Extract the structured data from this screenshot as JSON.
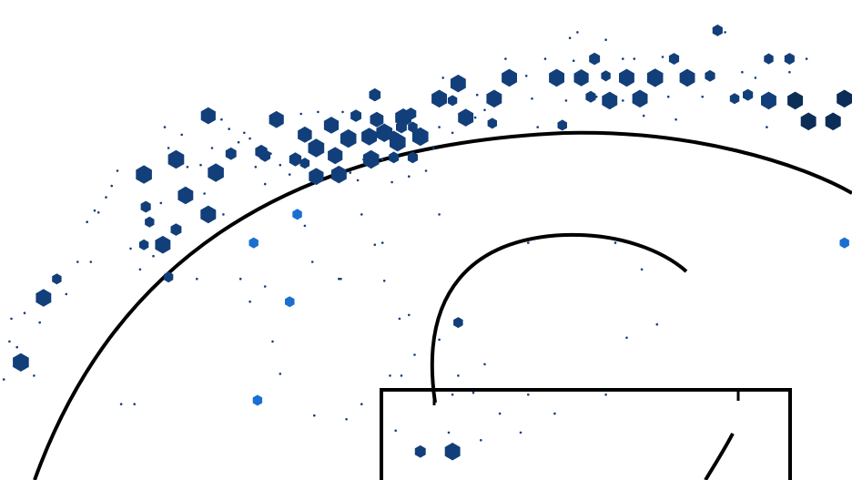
{
  "chart_data": {
    "type": "hexbin",
    "x_range_ft": [
      -22.5,
      22.5
    ],
    "y_range_ft": [
      -1.2,
      24.1
    ],
    "colors": {
      "high": "#0b2d57",
      "mid": "#123f7a",
      "low": "#1a6fd0",
      "lines": "#000000",
      "background": "#ffffff"
    },
    "bins": [
      {
        "x": -11.5,
        "y": 18.0,
        "r": 0.45,
        "c": "mid"
      },
      {
        "x": -8.7,
        "y": 16.1,
        "r": 0.37,
        "c": "mid"
      },
      {
        "x": -7.9,
        "y": 17.8,
        "r": 0.45,
        "c": "mid"
      },
      {
        "x": -6.9,
        "y": 15.7,
        "r": 0.37,
        "c": "mid"
      },
      {
        "x": -6.4,
        "y": 17.0,
        "r": 0.43,
        "c": "mid"
      },
      {
        "x": -5.8,
        "y": 16.3,
        "r": 0.49,
        "c": "mid"
      },
      {
        "x": -6.4,
        "y": 15.5,
        "r": 0.29,
        "c": "mid"
      },
      {
        "x": -5.0,
        "y": 17.5,
        "r": 0.45,
        "c": "mid"
      },
      {
        "x": -5.8,
        "y": 14.8,
        "r": 0.45,
        "c": "mid"
      },
      {
        "x": -4.8,
        "y": 15.9,
        "r": 0.45,
        "c": "mid"
      },
      {
        "x": -4.1,
        "y": 16.8,
        "r": 0.49,
        "c": "mid"
      },
      {
        "x": -4.6,
        "y": 14.9,
        "r": 0.47,
        "c": "mid"
      },
      {
        "x": -2.7,
        "y": 19.1,
        "r": 0.35,
        "c": "mid"
      },
      {
        "x": -2.6,
        "y": 17.8,
        "r": 0.41,
        "c": "mid"
      },
      {
        "x": -2.2,
        "y": 17.1,
        "r": 0.49,
        "c": "mid"
      },
      {
        "x": -3.7,
        "y": 18.0,
        "r": 0.33,
        "c": "mid"
      },
      {
        "x": -1.2,
        "y": 17.9,
        "r": 0.49,
        "c": "mid"
      },
      {
        "x": -3.0,
        "y": 16.9,
        "r": 0.47,
        "c": "mid"
      },
      {
        "x": -1.5,
        "y": 16.6,
        "r": 0.49,
        "c": "mid"
      },
      {
        "x": -0.7,
        "y": 17.4,
        "r": 0.29,
        "c": "mid"
      },
      {
        "x": -2.9,
        "y": 15.7,
        "r": 0.49,
        "c": "mid"
      },
      {
        "x": -1.7,
        "y": 15.8,
        "r": 0.31,
        "c": "mid"
      },
      {
        "x": -1.7,
        "y": 16.9,
        "r": 0.31,
        "c": "mid"
      },
      {
        "x": -1.3,
        "y": 17.4,
        "r": 0.33,
        "c": "mid"
      },
      {
        "x": -0.8,
        "y": 18.1,
        "r": 0.33,
        "c": "mid"
      },
      {
        "x": -0.3,
        "y": 16.9,
        "r": 0.49,
        "c": "mid"
      },
      {
        "x": -0.7,
        "y": 15.8,
        "r": 0.31,
        "c": "mid"
      },
      {
        "x": 1.7,
        "y": 19.7,
        "r": 0.47,
        "c": "mid"
      },
      {
        "x": 0.7,
        "y": 18.9,
        "r": 0.47,
        "c": "mid"
      },
      {
        "x": 1.4,
        "y": 18.8,
        "r": 0.29,
        "c": "mid"
      },
      {
        "x": 2.1,
        "y": 17.9,
        "r": 0.47,
        "c": "mid"
      },
      {
        "x": 3.6,
        "y": 18.9,
        "r": 0.47,
        "c": "mid"
      },
      {
        "x": 4.4,
        "y": 20.0,
        "r": 0.47,
        "c": "mid"
      },
      {
        "x": 3.5,
        "y": 17.6,
        "r": 0.29,
        "c": "mid"
      },
      {
        "x": 6.9,
        "y": 20.0,
        "r": 0.47,
        "c": "mid"
      },
      {
        "x": 8.2,
        "y": 20.0,
        "r": 0.45,
        "c": "mid"
      },
      {
        "x": 8.9,
        "y": 21.0,
        "r": 0.33,
        "c": "mid"
      },
      {
        "x": 8.7,
        "y": 19.0,
        "r": 0.31,
        "c": "mid"
      },
      {
        "x": 9.5,
        "y": 20.1,
        "r": 0.29,
        "c": "mid"
      },
      {
        "x": 9.7,
        "y": 18.8,
        "r": 0.47,
        "c": "mid"
      },
      {
        "x": 10.6,
        "y": 20.0,
        "r": 0.47,
        "c": "mid"
      },
      {
        "x": 11.3,
        "y": 18.9,
        "r": 0.47,
        "c": "mid"
      },
      {
        "x": 12.1,
        "y": 20.0,
        "r": 0.49,
        "c": "mid"
      },
      {
        "x": 13.1,
        "y": 21.0,
        "r": 0.31,
        "c": "mid"
      },
      {
        "x": 13.8,
        "y": 20.0,
        "r": 0.47,
        "c": "mid"
      },
      {
        "x": 15.0,
        "y": 20.1,
        "r": 0.31,
        "c": "mid"
      },
      {
        "x": 16.3,
        "y": 18.9,
        "r": 0.29,
        "c": "mid"
      },
      {
        "x": 18.1,
        "y": 21.0,
        "r": 0.29,
        "c": "mid"
      },
      {
        "x": 19.2,
        "y": 21.0,
        "r": 0.31,
        "c": "mid"
      },
      {
        "x": 18.1,
        "y": 18.8,
        "r": 0.47,
        "c": "mid"
      },
      {
        "x": 19.5,
        "y": 18.8,
        "r": 0.47,
        "c": "high"
      },
      {
        "x": 20.2,
        "y": 17.7,
        "r": 0.47,
        "c": "high"
      },
      {
        "x": 21.5,
        "y": 17.7,
        "r": 0.47,
        "c": "high"
      },
      {
        "x": 22.1,
        "y": 18.9,
        "r": 0.47,
        "c": "high"
      },
      {
        "x": 7.2,
        "y": 17.5,
        "r": 0.29,
        "c": "mid"
      },
      {
        "x": -14.9,
        "y": 14.9,
        "r": 0.49,
        "c": "mid"
      },
      {
        "x": -13.2,
        "y": 15.7,
        "r": 0.49,
        "c": "mid"
      },
      {
        "x": -11.1,
        "y": 15.0,
        "r": 0.49,
        "c": "mid"
      },
      {
        "x": -10.3,
        "y": 16.0,
        "r": 0.33,
        "c": "mid"
      },
      {
        "x": -12.7,
        "y": 13.8,
        "r": 0.47,
        "c": "mid"
      },
      {
        "x": -11.5,
        "y": 12.8,
        "r": 0.47,
        "c": "mid"
      },
      {
        "x": -13.2,
        "y": 12.0,
        "r": 0.33,
        "c": "mid"
      },
      {
        "x": -14.6,
        "y": 12.4,
        "r": 0.29,
        "c": "mid"
      },
      {
        "x": -13.9,
        "y": 11.2,
        "r": 0.47,
        "c": "mid"
      },
      {
        "x": -14.9,
        "y": 11.2,
        "r": 0.29,
        "c": "mid"
      },
      {
        "x": -13.6,
        "y": 9.5,
        "r": 0.29,
        "c": "mid"
      },
      {
        "x": -19.5,
        "y": 9.4,
        "r": 0.29,
        "c": "mid"
      },
      {
        "x": -20.2,
        "y": 8.4,
        "r": 0.47,
        "c": "mid"
      },
      {
        "x": -21.4,
        "y": 5.0,
        "r": 0.49,
        "c": "mid"
      },
      {
        "x": -9.1,
        "y": 11.3,
        "r": 0.29,
        "c": "low"
      },
      {
        "x": -6.8,
        "y": 12.8,
        "r": 0.29,
        "c": "low"
      },
      {
        "x": -7.2,
        "y": 8.2,
        "r": 0.29,
        "c": "low"
      },
      {
        "x": -8.9,
        "y": 3.0,
        "r": 0.29,
        "c": "low"
      },
      {
        "x": 22.1,
        "y": 11.3,
        "r": 0.29,
        "c": "low"
      },
      {
        "x": 1.7,
        "y": 7.1,
        "r": 0.29,
        "c": "mid"
      },
      {
        "x": -0.3,
        "y": 0.3,
        "r": 0.33,
        "c": "mid"
      },
      {
        "x": 1.4,
        "y": 0.3,
        "r": 0.47,
        "c": "mid"
      },
      {
        "x": 15.4,
        "y": 22.5,
        "r": 0.31,
        "c": "mid"
      },
      {
        "x": 17.0,
        "y": 19.1,
        "r": 0.31,
        "c": "mid"
      },
      {
        "x": -14.8,
        "y": 13.2,
        "r": 0.31,
        "c": "mid"
      },
      {
        "x": -8.5,
        "y": 15.9,
        "r": 0.33,
        "c": "mid"
      }
    ],
    "sparse_points": [
      [
        -22.3,
        4.1
      ],
      [
        -22.0,
        6.1
      ],
      [
        -21.6,
        5.8
      ],
      [
        -21.9,
        7.3
      ],
      [
        -21.2,
        7.6
      ],
      [
        -20.4,
        7.1
      ],
      [
        -19.0,
        8.6
      ],
      [
        -18.4,
        10.3
      ],
      [
        -17.7,
        10.3
      ],
      [
        -17.9,
        12.4
      ],
      [
        -17.3,
        12.9
      ],
      [
        -16.9,
        13.7
      ],
      [
        -16.6,
        14.3
      ],
      [
        -16.3,
        15.1
      ],
      [
        -15.6,
        11.0
      ],
      [
        -15.1,
        9.9
      ],
      [
        -14.4,
        10.6
      ],
      [
        -14.0,
        13.4
      ],
      [
        -13.6,
        16.3
      ],
      [
        -13.8,
        17.4
      ],
      [
        -12.9,
        17.0
      ],
      [
        -12.6,
        15.3
      ],
      [
        -11.9,
        15.4
      ],
      [
        -11.3,
        16.3
      ],
      [
        -10.8,
        17.8
      ],
      [
        -10.4,
        17.3
      ],
      [
        -9.9,
        16.6
      ],
      [
        -9.6,
        17.1
      ],
      [
        -9.3,
        16.8
      ],
      [
        -9.0,
        15.3
      ],
      [
        -8.5,
        14.4
      ],
      [
        -8.2,
        16.0
      ],
      [
        -7.7,
        15.4
      ],
      [
        -7.2,
        14.9
      ],
      [
        -6.6,
        18.1
      ],
      [
        -5.7,
        18.2
      ],
      [
        -4.4,
        18.2
      ],
      [
        -4.0,
        15.0
      ],
      [
        -3.6,
        14.6
      ],
      [
        -3.3,
        15.7
      ],
      [
        -2.3,
        15.7
      ],
      [
        -1.8,
        14.5
      ],
      [
        -0.9,
        14.8
      ],
      [
        0.0,
        15.1
      ],
      [
        0.4,
        16.3
      ],
      [
        0.7,
        17.4
      ],
      [
        0.9,
        20.0
      ],
      [
        1.4,
        17.1
      ],
      [
        2.7,
        19.1
      ],
      [
        3.1,
        18.3
      ],
      [
        2.6,
        17.9
      ],
      [
        4.2,
        21.0
      ],
      [
        5.3,
        20.1
      ],
      [
        5.6,
        18.9
      ],
      [
        5.9,
        17.4
      ],
      [
        6.3,
        21.0
      ],
      [
        7.4,
        18.8
      ],
      [
        7.6,
        22.1
      ],
      [
        7.8,
        20.9
      ],
      [
        8.0,
        22.4
      ],
      [
        9.0,
        19.0
      ],
      [
        9.5,
        22.0
      ],
      [
        10.4,
        21.0
      ],
      [
        10.4,
        18.8
      ],
      [
        11.0,
        21.0
      ],
      [
        11.5,
        18.0
      ],
      [
        12.5,
        21.1
      ],
      [
        12.8,
        19.0
      ],
      [
        13.2,
        17.8
      ],
      [
        14.6,
        19.0
      ],
      [
        15.8,
        22.4
      ],
      [
        16.7,
        20.3
      ],
      [
        17.4,
        20.0
      ],
      [
        18.0,
        17.4
      ],
      [
        19.2,
        20.3
      ],
      [
        20.1,
        21.0
      ],
      [
        -20.7,
        4.3
      ],
      [
        -17.5,
        13.0
      ],
      [
        -11.7,
        13.9
      ],
      [
        -10.7,
        12.8
      ],
      [
        -9.8,
        9.4
      ],
      [
        -9.3,
        8.2
      ],
      [
        -8.5,
        9.0
      ],
      [
        -8.1,
        6.1
      ],
      [
        -7.7,
        4.4
      ],
      [
        -6.4,
        12.2
      ],
      [
        -6.0,
        10.3
      ],
      [
        -4.8,
        16.1
      ],
      [
        -2.3,
        11.3
      ],
      [
        -2.2,
        9.3
      ],
      [
        -1.4,
        7.3
      ],
      [
        -1.9,
        4.3
      ],
      [
        -0.9,
        7.5
      ],
      [
        -0.6,
        5.4
      ],
      [
        0.7,
        6.2
      ],
      [
        1.2,
        1.3
      ],
      [
        1.7,
        4.3
      ],
      [
        2.5,
        3.4
      ],
      [
        1.4,
        3.3
      ],
      [
        -3.4,
        2.8
      ],
      [
        -1.6,
        1.4
      ],
      [
        -1.3,
        4.3
      ],
      [
        3.9,
        2.3
      ],
      [
        5.4,
        3.3
      ],
      [
        5.4,
        11.3
      ],
      [
        5.0,
        1.3
      ],
      [
        6.8,
        2.3
      ],
      [
        9.5,
        3.3
      ],
      [
        10.0,
        11.3
      ],
      [
        11.4,
        9.9
      ],
      [
        10.6,
        6.3
      ],
      [
        12.2,
        7.0
      ],
      [
        -2.7,
        11.2
      ],
      [
        -4.5,
        9.4
      ],
      [
        -3.4,
        12.8
      ],
      [
        -5.9,
        2.2
      ],
      [
        -15.4,
        2.8
      ],
      [
        -16.1,
        2.8
      ],
      [
        -12.1,
        9.4
      ],
      [
        -4.6,
        9.4
      ],
      [
        -4.2,
        2.0
      ],
      [
        0.7,
        12.8
      ],
      [
        3.1,
        4.9
      ],
      [
        2.9,
        0.9
      ]
    ]
  }
}
